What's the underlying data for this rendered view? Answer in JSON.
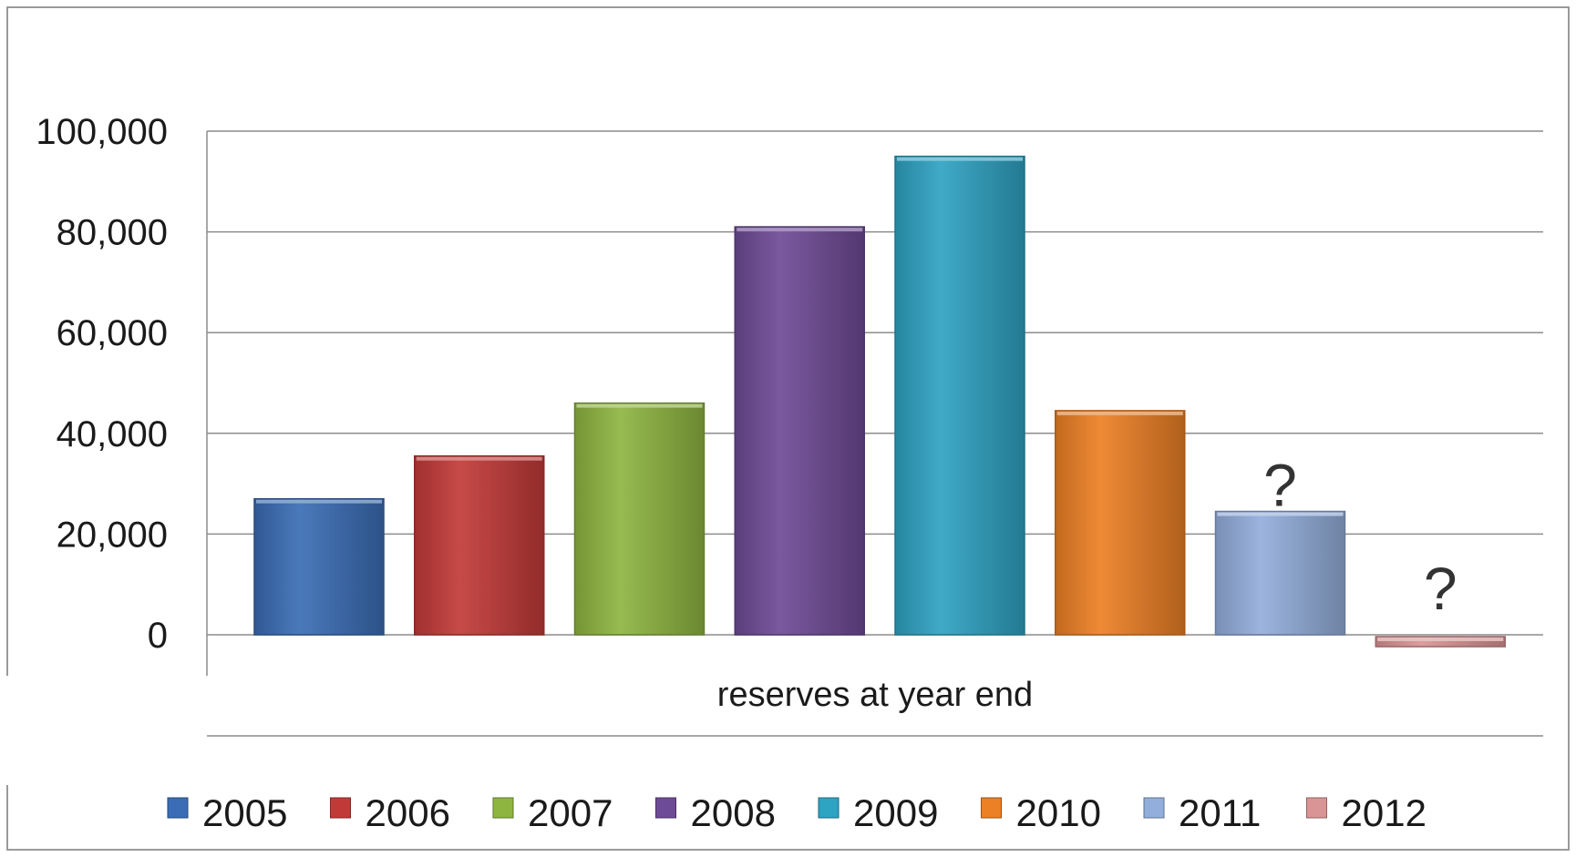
{
  "chart_data": {
    "type": "bar",
    "title": "",
    "xlabel": "",
    "ylabel": "",
    "categories": [
      "reserves at year end"
    ],
    "ylim": [
      -8000,
      100000
    ],
    "yticks": [
      0,
      20000,
      40000,
      60000,
      80000,
      100000
    ],
    "ytick_labels": [
      "0",
      "20,000",
      "40,000",
      "60,000",
      "80,000",
      "100,000"
    ],
    "grid": true,
    "legend_position": "bottom",
    "series": [
      {
        "name": "2005",
        "values": [
          27000
        ],
        "color": "#3a6db5",
        "annotation": ""
      },
      {
        "name": "2006",
        "values": [
          35500
        ],
        "color": "#c23a38",
        "annotation": ""
      },
      {
        "name": "2007",
        "values": [
          46000
        ],
        "color": "#8fb541",
        "annotation": ""
      },
      {
        "name": "2008",
        "values": [
          81000
        ],
        "color": "#6e4b96",
        "annotation": ""
      },
      {
        "name": "2009",
        "values": [
          95000
        ],
        "color": "#2ea3c2",
        "annotation": ""
      },
      {
        "name": "2010",
        "values": [
          44500
        ],
        "color": "#ec8025",
        "annotation": ""
      },
      {
        "name": "2011",
        "values": [
          24500
        ],
        "color": "#93aedb",
        "annotation": "?"
      },
      {
        "name": "2012",
        "values": [
          -2000
        ],
        "color": "#d99595",
        "annotation": "?"
      }
    ]
  }
}
